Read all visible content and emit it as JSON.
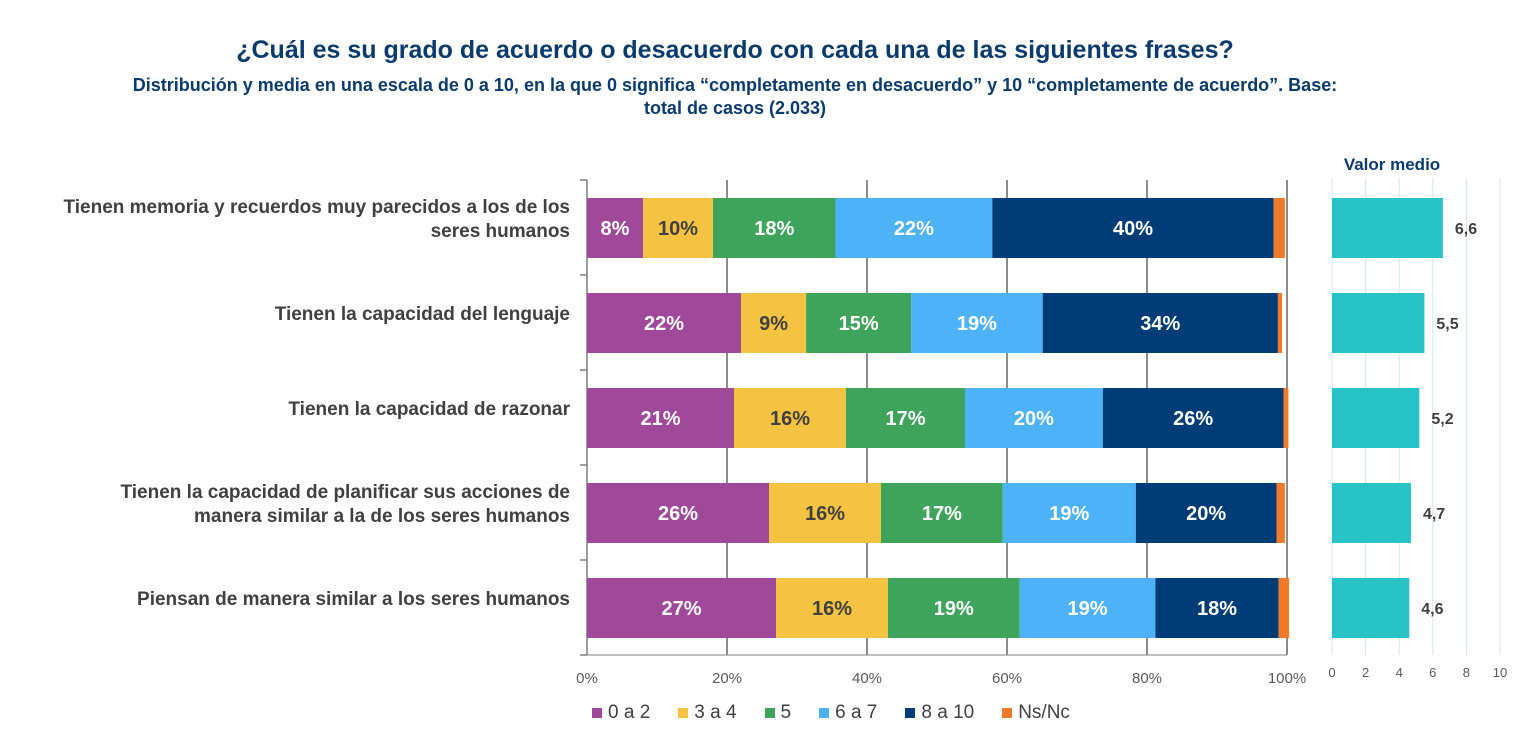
{
  "chart_data": [
    {
      "type": "bar",
      "orientation": "horizontal",
      "stacked": true,
      "title": "¿Cuál es su grado de acuerdo o desacuerdo con cada una de las siguientes frases?",
      "subtitle_line1": "Distribución  y media en una escala de 0 a 10, en la que 0 significa “completamente en desacuerdo” y 10 “completamente de acuerdo”. Base:",
      "subtitle_line2": "total de casos (2.033)",
      "categories": [
        [
          "Tienen memoria y recuerdos muy parecidos a los de los",
          "seres humanos"
        ],
        [
          "Tienen la capacidad del lenguaje"
        ],
        [
          "Tienen la capacidad de razonar"
        ],
        [
          "Tienen la capacidad de planificar sus acciones de",
          "manera similar a la de los seres humanos"
        ],
        [
          "Piensan de manera similar a los seres humanos"
        ]
      ],
      "series": [
        {
          "name": "0 a 2",
          "color": "#a0489a",
          "values": [
            8,
            22,
            21,
            26,
            27
          ],
          "labels": [
            "8%",
            "22%",
            "21%",
            "26%",
            "27%"
          ]
        },
        {
          "name": "3 a 4",
          "color": "#f5c342",
          "values": [
            10,
            9.3,
            16,
            16,
            16
          ],
          "labels": [
            "10%",
            "9%",
            "16%",
            "16%",
            "16%"
          ]
        },
        {
          "name": "5",
          "color": "#3fa45b",
          "values": [
            17.5,
            15,
            17,
            17.4,
            18.8
          ],
          "labels": [
            "18%",
            "15%",
            "17%",
            "17%",
            "19%"
          ]
        },
        {
          "name": "6 a 7",
          "color": "#4db2f8",
          "values": [
            22.4,
            18.8,
            19.7,
            19,
            19.4
          ],
          "labels": [
            "22%",
            "19%",
            "20%",
            "19%",
            "19%"
          ]
        },
        {
          "name": "8 a 10",
          "color": "#003c78",
          "values": [
            40.2,
            33.6,
            25.8,
            20.1,
            17.6
          ],
          "labels": [
            "40%",
            "34%",
            "26%",
            "20%",
            "18%"
          ]
        },
        {
          "name": "Ns/Nc",
          "color": "#f07a2a",
          "values": [
            1.6,
            0.6,
            0.7,
            1.2,
            1.5
          ],
          "labels": [
            "",
            "",
            "",
            "",
            ""
          ]
        }
      ],
      "xlim": [
        0,
        100
      ],
      "x_ticks": [
        "0%",
        "20%",
        "40%",
        "60%",
        "80%",
        "100%"
      ],
      "grid": true,
      "legend_position": "bottom"
    },
    {
      "type": "bar",
      "orientation": "horizontal",
      "title": "Valor medio",
      "color": "#27c3c7",
      "values": [
        6.6,
        5.5,
        5.2,
        4.7,
        4.6
      ],
      "labels": [
        "6,6",
        "5,5",
        "5,2",
        "4,7",
        "4,6"
      ],
      "xlim": [
        0,
        10
      ],
      "x_ticks": [
        "0",
        "2",
        "4",
        "6",
        "8",
        "10"
      ],
      "grid": true
    }
  ]
}
